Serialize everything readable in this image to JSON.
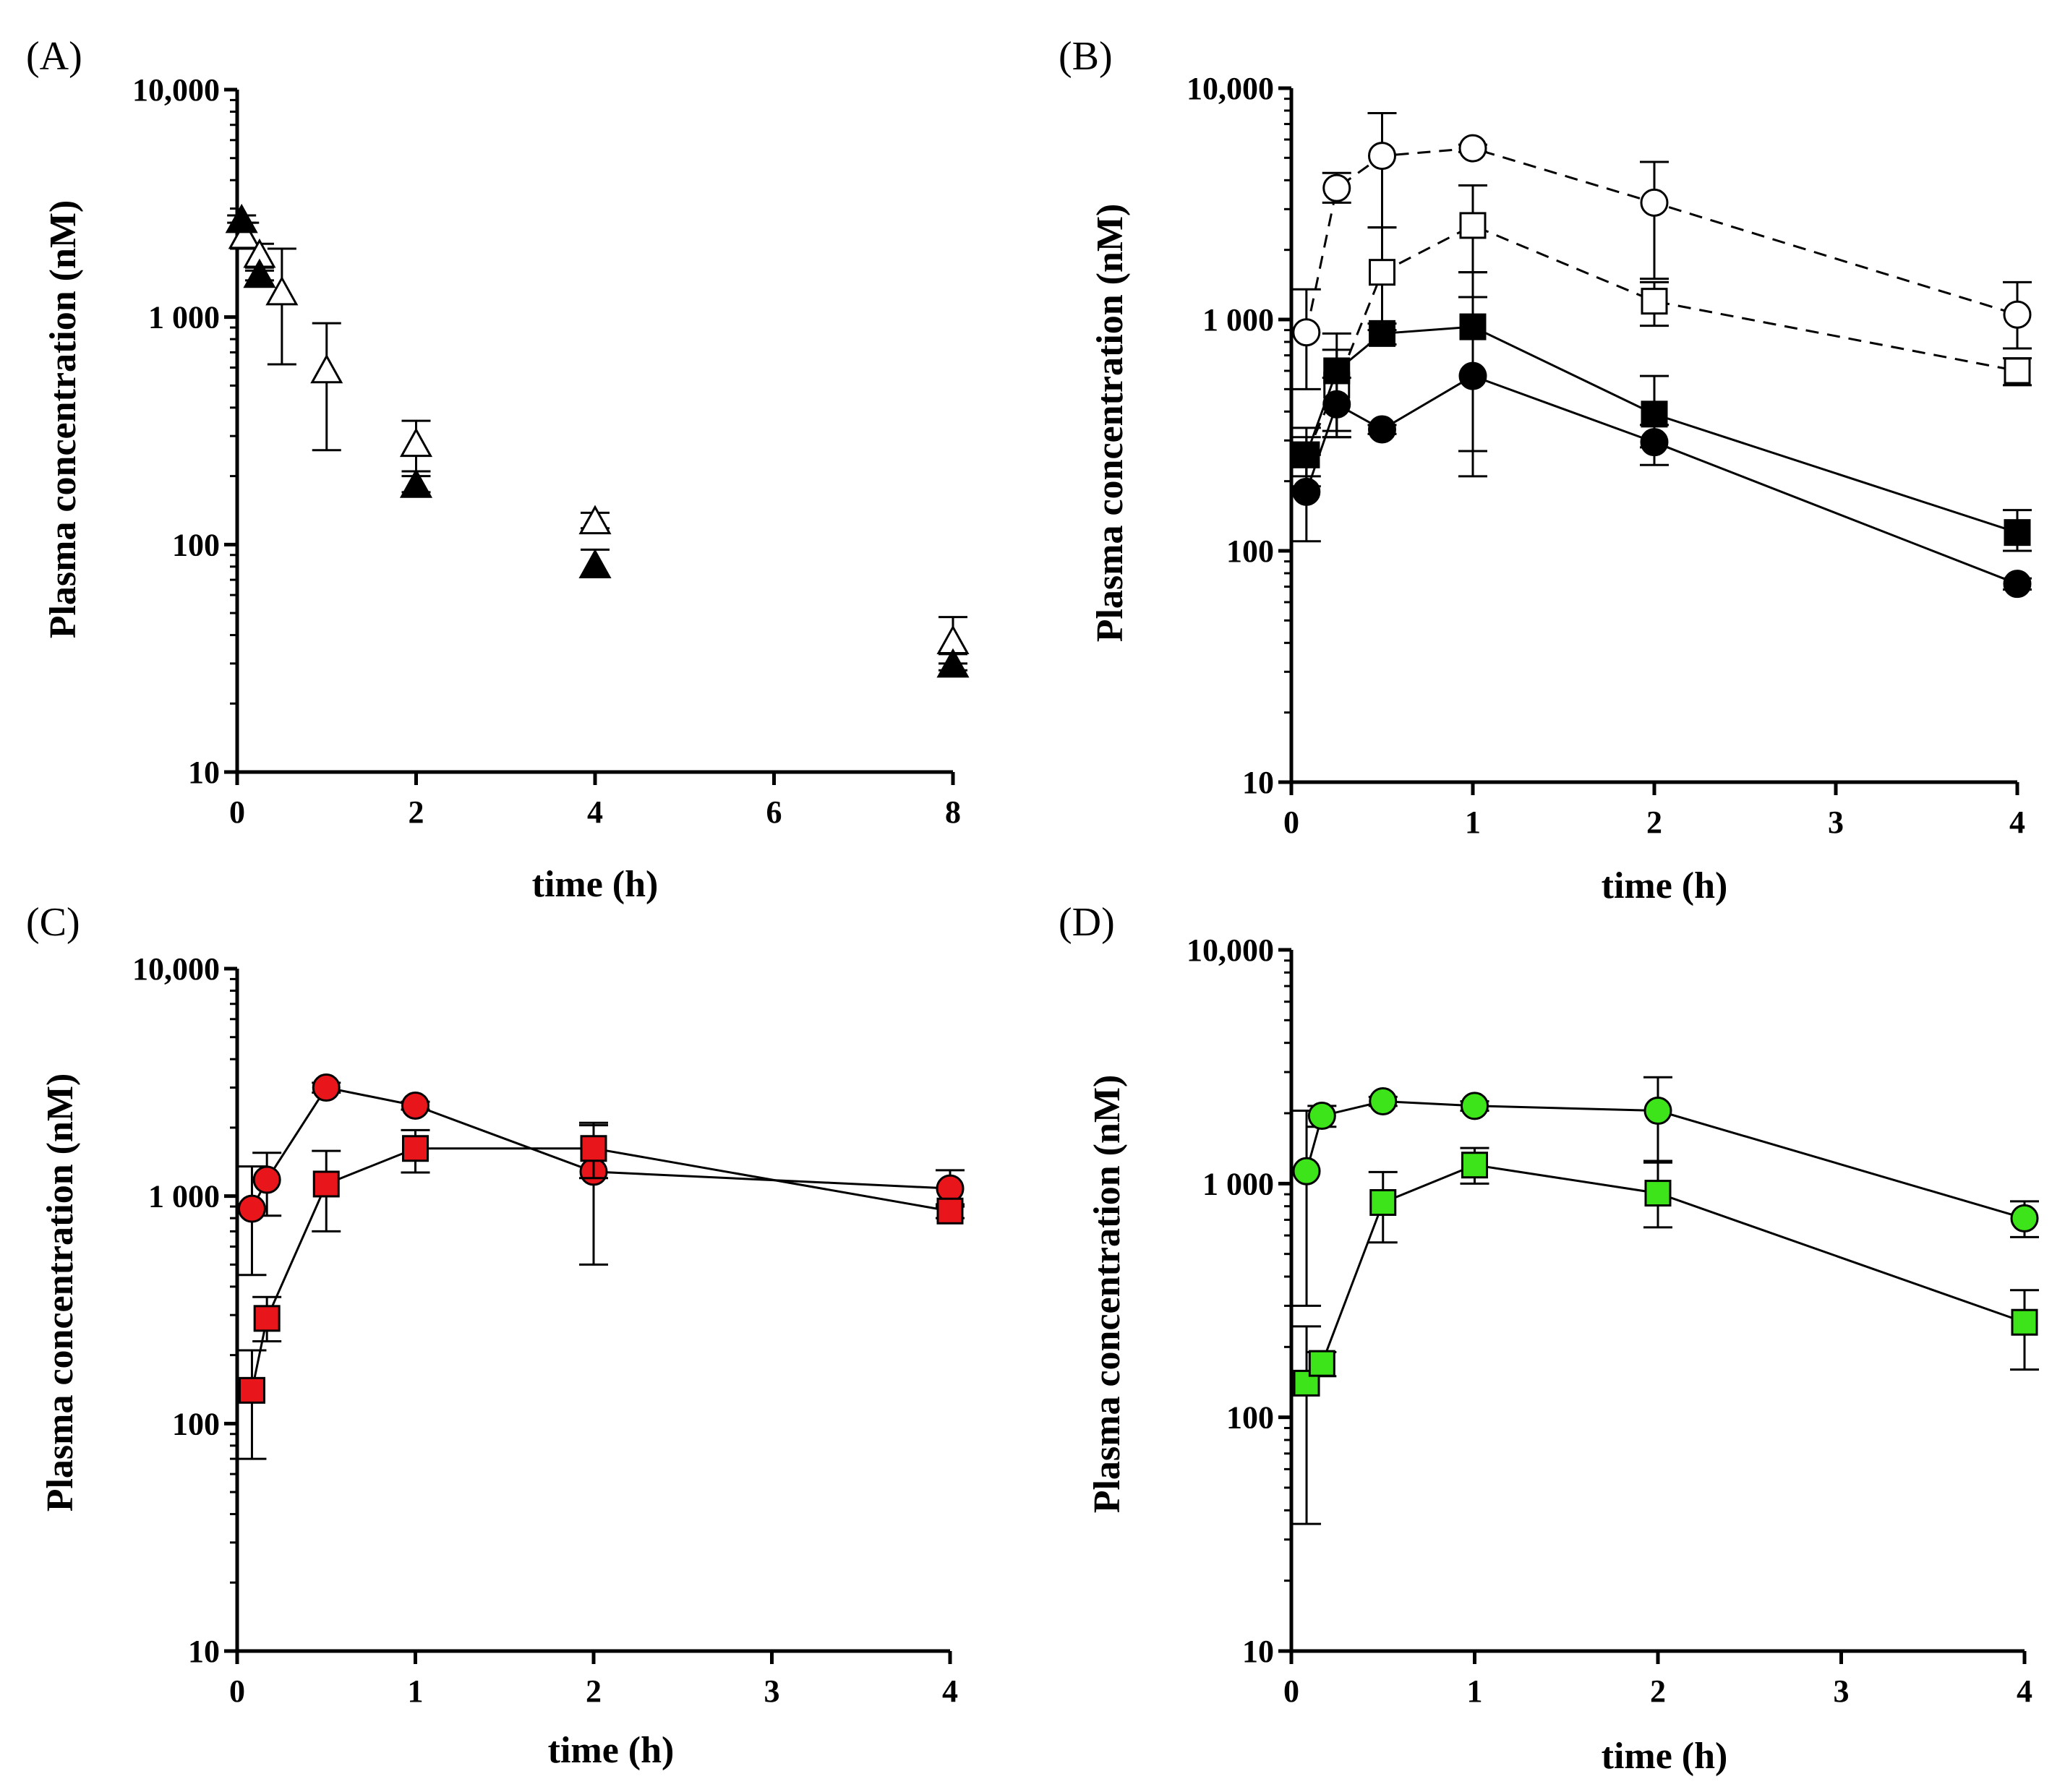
{
  "chart_data": [
    {
      "panel": "(A)",
      "type": "scatter",
      "title": "",
      "xlabel": "time (h)",
      "ylabel": "Plasma concentration (nM)",
      "yscale": "log",
      "xlim": [
        0,
        8
      ],
      "ylim": [
        10,
        10000
      ],
      "xticks": [
        0,
        2,
        4,
        6,
        8
      ],
      "xtick_labels": [
        "0",
        "2",
        "4",
        "6",
        "8"
      ],
      "yticks": [
        10,
        100,
        1000,
        10000
      ],
      "ytick_labels": [
        "10",
        "100",
        "1 000",
        "10,000"
      ],
      "series": [
        {
          "name": "open triangles",
          "marker": "triangle",
          "fill": "#ffffff",
          "stroke": "#000000",
          "line": "none",
          "points": [
            {
              "x": 0.083,
              "y": 2300,
              "lo": 2000,
              "hi": 2600
            },
            {
              "x": 0.25,
              "y": 1900,
              "lo": 1600,
              "hi": 2100
            },
            {
              "x": 0.5,
              "y": 1300,
              "lo": 620,
              "hi": 2000
            },
            {
              "x": 1,
              "y": 590,
              "lo": 260,
              "hi": 940
            },
            {
              "x": 2,
              "y": 280,
              "lo": 210,
              "hi": 350
            },
            {
              "x": 4,
              "y": 128,
              "lo": 118,
              "hi": 138
            },
            {
              "x": 8,
              "y": 38,
              "lo": 30,
              "hi": 48
            }
          ]
        },
        {
          "name": "filled triangles",
          "marker": "triangle",
          "fill": "#000000",
          "stroke": "#000000",
          "line": "none",
          "points": [
            {
              "x": 0.05,
              "y": 2700,
              "lo": 2600,
              "hi": 2800
            },
            {
              "x": 0.25,
              "y": 1550,
              "lo": 1450,
              "hi": 1650
            },
            {
              "x": 2,
              "y": 185,
              "lo": 170,
              "hi": 200
            },
            {
              "x": 4,
              "y": 82,
              "lo": 72,
              "hi": 95
            },
            {
              "x": 8,
              "y": 30,
              "lo": 28,
              "hi": 33
            }
          ]
        }
      ]
    },
    {
      "panel": "(B)",
      "type": "line",
      "title": "",
      "xlabel": "time (h)",
      "ylabel": "Plasma concentration (nM)",
      "yscale": "log",
      "xlim": [
        0,
        4
      ],
      "ylim": [
        10,
        10000
      ],
      "xticks": [
        0,
        1,
        2,
        3,
        4
      ],
      "xtick_labels": [
        "0",
        "1",
        "2",
        "3",
        "4"
      ],
      "yticks": [
        10,
        100,
        1000,
        10000
      ],
      "ytick_labels": [
        "10",
        "100",
        "1 000",
        "10,000"
      ],
      "series": [
        {
          "name": "open circles",
          "marker": "circle",
          "fill": "#ffffff",
          "stroke": "#000000",
          "line": "dashed",
          "lineColor": "#000000",
          "points": [
            {
              "x": 0.083,
              "y": 880,
              "lo": 500,
              "hi": 1350
            },
            {
              "x": 0.25,
              "y": 3700,
              "lo": 3200,
              "hi": 4300
            },
            {
              "x": 0.5,
              "y": 5100,
              "lo": 2500,
              "hi": 7800
            },
            {
              "x": 1,
              "y": 5500,
              "lo": 5300,
              "hi": 5700
            },
            {
              "x": 2,
              "y": 3200,
              "lo": 1500,
              "hi": 4800
            },
            {
              "x": 4,
              "y": 1050,
              "lo": 750,
              "hi": 1450
            }
          ]
        },
        {
          "name": "open squares",
          "marker": "square",
          "fill": "#ffffff",
          "stroke": "#000000",
          "line": "dashed",
          "lineColor": "#000000",
          "points": [
            {
              "x": 0.083,
              "y": 260,
              "lo": 190,
              "hi": 340
            },
            {
              "x": 0.25,
              "y": 520,
              "lo": 310,
              "hi": 740
            },
            {
              "x": 0.5,
              "y": 1600,
              "lo": 900,
              "hi": 2500
            },
            {
              "x": 1,
              "y": 2550,
              "lo": 1600,
              "hi": 3800
            },
            {
              "x": 2,
              "y": 1200,
              "lo": 940,
              "hi": 1450
            },
            {
              "x": 4,
              "y": 600,
              "lo": 520,
              "hi": 680
            }
          ]
        },
        {
          "name": "filled squares",
          "marker": "square",
          "fill": "#000000",
          "stroke": "#000000",
          "line": "solid",
          "lineColor": "#000000",
          "points": [
            {
              "x": 0.083,
              "y": 260,
              "lo": 210,
              "hi": 310
            },
            {
              "x": 0.25,
              "y": 600,
              "lo": 330,
              "hi": 870
            },
            {
              "x": 0.5,
              "y": 870,
              "lo": 780,
              "hi": 960
            },
            {
              "x": 1,
              "y": 930,
              "lo": 270,
              "hi": 1600
            },
            {
              "x": 2,
              "y": 390,
              "lo": 280,
              "hi": 570
            },
            {
              "x": 4,
              "y": 120,
              "lo": 100,
              "hi": 150
            }
          ]
        },
        {
          "name": "filled circles",
          "marker": "circle",
          "fill": "#000000",
          "stroke": "#000000",
          "line": "solid",
          "lineColor": "#000000",
          "points": [
            {
              "x": 0.083,
              "y": 180,
              "lo": 110,
              "hi": 260
            },
            {
              "x": 0.25,
              "y": 430,
              "lo": 310,
              "hi": 560
            },
            {
              "x": 0.5,
              "y": 335,
              "lo": 320,
              "hi": 350
            },
            {
              "x": 1,
              "y": 570,
              "lo": 210,
              "hi": 1250
            },
            {
              "x": 2,
              "y": 295,
              "lo": 235,
              "hi": 350
            },
            {
              "x": 4,
              "y": 72,
              "lo": 68,
              "hi": 76
            }
          ]
        }
      ]
    },
    {
      "panel": "(C)",
      "type": "line",
      "title": "",
      "xlabel": "time (h)",
      "ylabel": "Plasma concentration (nM)",
      "yscale": "log",
      "xlim": [
        0,
        4
      ],
      "ylim": [
        10,
        10000
      ],
      "xticks": [
        0,
        1,
        2,
        3,
        4
      ],
      "xtick_labels": [
        "0",
        "1",
        "2",
        "3",
        "4"
      ],
      "yticks": [
        10,
        100,
        1000,
        10000
      ],
      "ytick_labels": [
        "10",
        "100",
        "1 000",
        "10,000"
      ],
      "series": [
        {
          "name": "red circles",
          "marker": "circle",
          "fill": "#e8151b",
          "stroke": "#000000",
          "line": "solid",
          "lineColor": "#000000",
          "points": [
            {
              "x": 0.083,
              "y": 880,
              "lo": 450,
              "hi": 1350
            },
            {
              "x": 0.167,
              "y": 1180,
              "lo": 820,
              "hi": 1550
            },
            {
              "x": 0.5,
              "y": 3000,
              "lo": 2850,
              "hi": 3150
            },
            {
              "x": 1,
              "y": 2500,
              "lo": 2400,
              "hi": 2600
            },
            {
              "x": 2,
              "y": 1280,
              "lo": 500,
              "hi": 2050
            },
            {
              "x": 4,
              "y": 1080,
              "lo": 900,
              "hi": 1300
            }
          ]
        },
        {
          "name": "red squares",
          "marker": "square",
          "fill": "#e8151b",
          "stroke": "#000000",
          "line": "solid",
          "lineColor": "#000000",
          "points": [
            {
              "x": 0.083,
              "y": 140,
              "lo": 70,
              "hi": 210
            },
            {
              "x": 0.167,
              "y": 290,
              "lo": 230,
              "hi": 360
            },
            {
              "x": 0.5,
              "y": 1130,
              "lo": 700,
              "hi": 1580
            },
            {
              "x": 1,
              "y": 1620,
              "lo": 1270,
              "hi": 1950
            },
            {
              "x": 2,
              "y": 1620,
              "lo": 1200,
              "hi": 2100
            },
            {
              "x": 4,
              "y": 860,
              "lo": 800,
              "hi": 920
            }
          ]
        }
      ]
    },
    {
      "panel": "(D)",
      "type": "line",
      "title": "",
      "xlabel": "time (h)",
      "ylabel": "Plasma concentration (nM)",
      "yscale": "log",
      "xlim": [
        0,
        4
      ],
      "ylim": [
        10,
        10000
      ],
      "xticks": [
        0,
        1,
        2,
        3,
        4
      ],
      "xtick_labels": [
        "0",
        "1",
        "2",
        "3",
        "4"
      ],
      "yticks": [
        10,
        100,
        1000,
        10000
      ],
      "ytick_labels": [
        "10",
        "100",
        "1 000",
        "10,000"
      ],
      "series": [
        {
          "name": "green circles",
          "marker": "circle",
          "fill": "#3ee41a",
          "stroke": "#000000",
          "line": "solid",
          "lineColor": "#000000",
          "points": [
            {
              "x": 0.083,
              "y": 1130,
              "lo": 300,
              "hi": 2050
            },
            {
              "x": 0.167,
              "y": 1950,
              "lo": 1750,
              "hi": 2150
            },
            {
              "x": 0.5,
              "y": 2250,
              "lo": 2150,
              "hi": 2350
            },
            {
              "x": 1,
              "y": 2150,
              "lo": 2050,
              "hi": 2250
            },
            {
              "x": 2,
              "y": 2050,
              "lo": 1250,
              "hi": 2850
            },
            {
              "x": 4,
              "y": 710,
              "lo": 590,
              "hi": 840
            }
          ]
        },
        {
          "name": "green squares",
          "marker": "square",
          "fill": "#3ee41a",
          "stroke": "#000000",
          "line": "solid",
          "lineColor": "#000000",
          "points": [
            {
              "x": 0.083,
              "y": 140,
              "lo": 35,
              "hi": 245
            },
            {
              "x": 0.167,
              "y": 170,
              "lo": 150,
              "hi": 190
            },
            {
              "x": 0.5,
              "y": 830,
              "lo": 560,
              "hi": 1120
            },
            {
              "x": 1,
              "y": 1200,
              "lo": 1000,
              "hi": 1420
            },
            {
              "x": 2,
              "y": 910,
              "lo": 650,
              "hi": 1230
            },
            {
              "x": 4,
              "y": 255,
              "lo": 160,
              "hi": 350
            }
          ]
        }
      ]
    }
  ]
}
